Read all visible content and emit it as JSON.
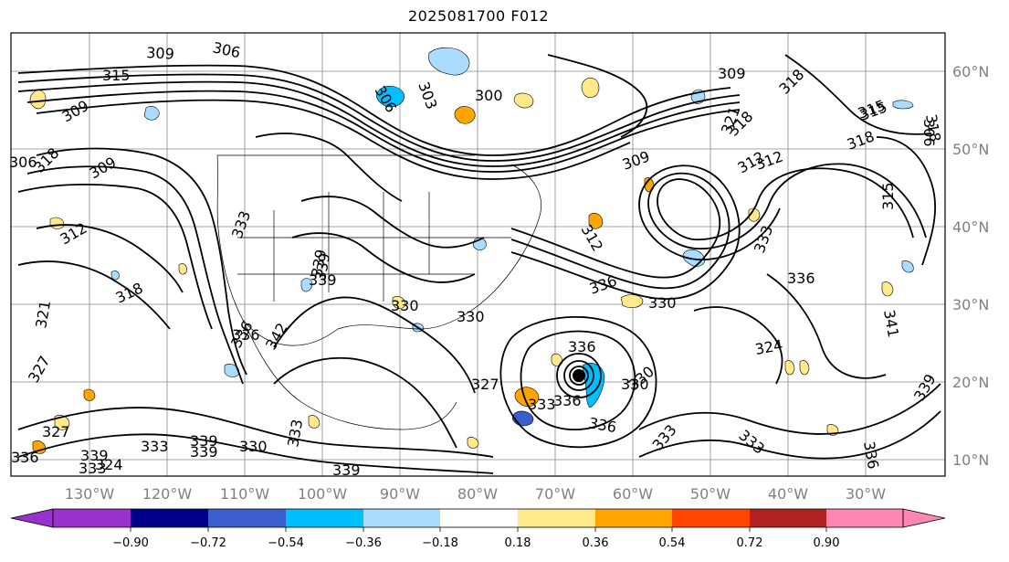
{
  "title": "2025081700 F012",
  "map": {
    "lon_ticks": [
      "130°W",
      "120°W",
      "110°W",
      "100°W",
      "90°W",
      "80°W",
      "70°W",
      "60°W",
      "50°W",
      "40°W",
      "30°W"
    ],
    "lat_ticks": [
      "60°N",
      "50°N",
      "40°N",
      "30°N",
      "20°N",
      "10°N"
    ],
    "contour_labels": [
      "309",
      "306",
      "315",
      "303",
      "309",
      "306",
      "300",
      "306",
      "309",
      "312",
      "315",
      "318",
      "306",
      "309",
      "312",
      "333",
      "336",
      "339",
      "312",
      "318",
      "321",
      "318",
      "318",
      "327",
      "336",
      "342",
      "339",
      "330",
      "336",
      "330",
      "336",
      "327",
      "324",
      "336",
      "336",
      "330",
      "333",
      "336",
      "333",
      "339",
      "327",
      "330",
      "336",
      "333",
      "339",
      "339",
      "333",
      "330",
      "339",
      "333",
      "339",
      "333",
      "324",
      "315",
      "321",
      "318",
      "309",
      "312",
      "318",
      "315",
      "330",
      "333",
      "336",
      "339",
      "341"
    ]
  },
  "colorbar": {
    "ticks": [
      "−0.90",
      "−0.72",
      "−0.54",
      "−0.36",
      "−0.18",
      "0.18",
      "0.36",
      "0.54",
      "0.72",
      "0.90"
    ],
    "colors": [
      "#9932cc",
      "#00008b",
      "#3a5fcd",
      "#00bfff",
      "#aadcff",
      "#ffffff",
      "#ffe98a",
      "#ffa500",
      "#ff4500",
      "#b22222",
      "#ff85b3"
    ],
    "extend_min_color": "#9932cc",
    "extend_max_color": "#ff85b3"
  }
}
